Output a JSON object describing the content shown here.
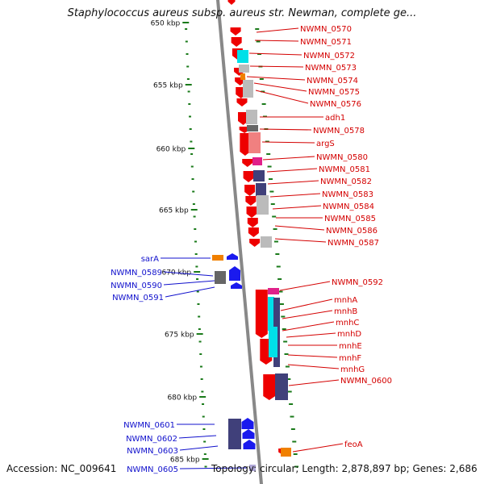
{
  "title": "Staphylococcus aureus subsp. aureus str. Newman, complete ge...",
  "footer": {
    "accession": "Accession: NC_009641",
    "summary": "Topology: circular; Length: 2,878,897 bp; Genes: 2,686"
  },
  "scale": {
    "unit": "kbp",
    "ticks": [
      "650 kbp",
      "655 kbp",
      "660 kbp",
      "665 kbp",
      "670 kbp",
      "675 kbp",
      "680 kbp",
      "685 kbp"
    ]
  },
  "colors": {
    "forward_label": "#d40000",
    "reverse_label": "#1010cc",
    "tick": "#1a7a1a",
    "backbone": "#888888",
    "gene_red": "#ee0000",
    "gene_blue": "#1a1aee",
    "gene_cyan": "#00e0e8",
    "gene_gray": "#bbbbbb",
    "gene_purple": "#40407a",
    "gene_orange": "#f08000",
    "gene_pink": "#e0208a",
    "gene_salmon": "#f08080"
  },
  "forward_genes": [
    "NWMN_0570",
    "NWMN_0571",
    "NWMN_0572",
    "NWMN_0573",
    "NWMN_0574",
    "NWMN_0575",
    "NWMN_0576",
    "adh1",
    "NWMN_0578",
    "argS",
    "NWMN_0580",
    "NWMN_0581",
    "NWMN_0582",
    "NWMN_0583",
    "NWMN_0584",
    "NWMN_0585",
    "NWMN_0586",
    "NWMN_0587",
    "NWMN_0592",
    "mnhA",
    "mnhB",
    "mnhC",
    "mnhD",
    "mnhE",
    "mnhF",
    "mnhG",
    "NWMN_0600",
    "feoA"
  ],
  "reverse_genes": [
    "sarA",
    "NWMN_0589",
    "NWMN_0590",
    "NWMN_0591",
    "NWMN_0601",
    "NWMN_0602",
    "NWMN_0603",
    "NWMN_0605"
  ]
}
